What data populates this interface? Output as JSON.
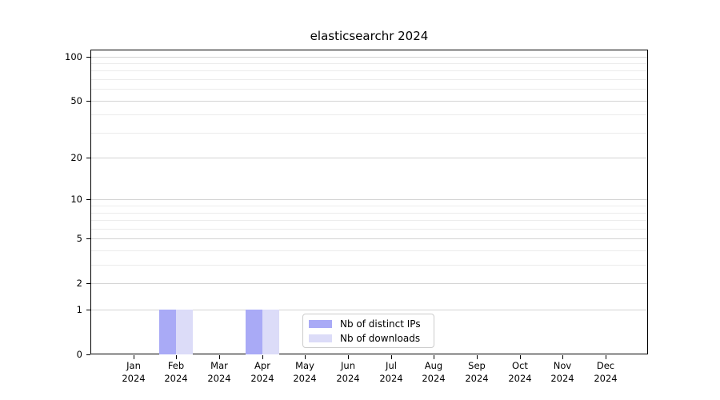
{
  "chart_data": {
    "type": "bar",
    "title": "elasticsearchr 2024",
    "categories": [
      "Jan",
      "Feb",
      "Mar",
      "Apr",
      "May",
      "Jun",
      "Jul",
      "Aug",
      "Sep",
      "Oct",
      "Nov",
      "Dec"
    ],
    "x_year": "2024",
    "series": [
      {
        "name": "Nb of distinct IPs",
        "color": "#a9aaf6",
        "values": [
          0,
          1,
          0,
          1,
          0,
          0,
          0,
          0,
          0,
          0,
          0,
          0
        ]
      },
      {
        "name": "Nb of downloads",
        "color": "#dcdcf8",
        "values": [
          0,
          1,
          0,
          1,
          0,
          0,
          0,
          0,
          0,
          0,
          0,
          0
        ]
      }
    ],
    "y_scale": "log1p",
    "y_ticks": [
      0,
      1,
      2,
      5,
      10,
      20,
      50,
      100
    ],
    "grid_minor_values": [
      3,
      4,
      6,
      7,
      8,
      9,
      30,
      40,
      60,
      70,
      80,
      90
    ],
    "grid_major_values": [
      1,
      2,
      5,
      10,
      20,
      50,
      100
    ],
    "ylim": [
      0,
      111
    ],
    "grid": "horizontal",
    "legend_position": "lower center inside plot",
    "colors": {
      "grid_major": "#d4d4d4",
      "grid_minor": "#ececec",
      "axis": "#000000",
      "legend_border": "#cccccc",
      "background": "#ffffff"
    }
  }
}
